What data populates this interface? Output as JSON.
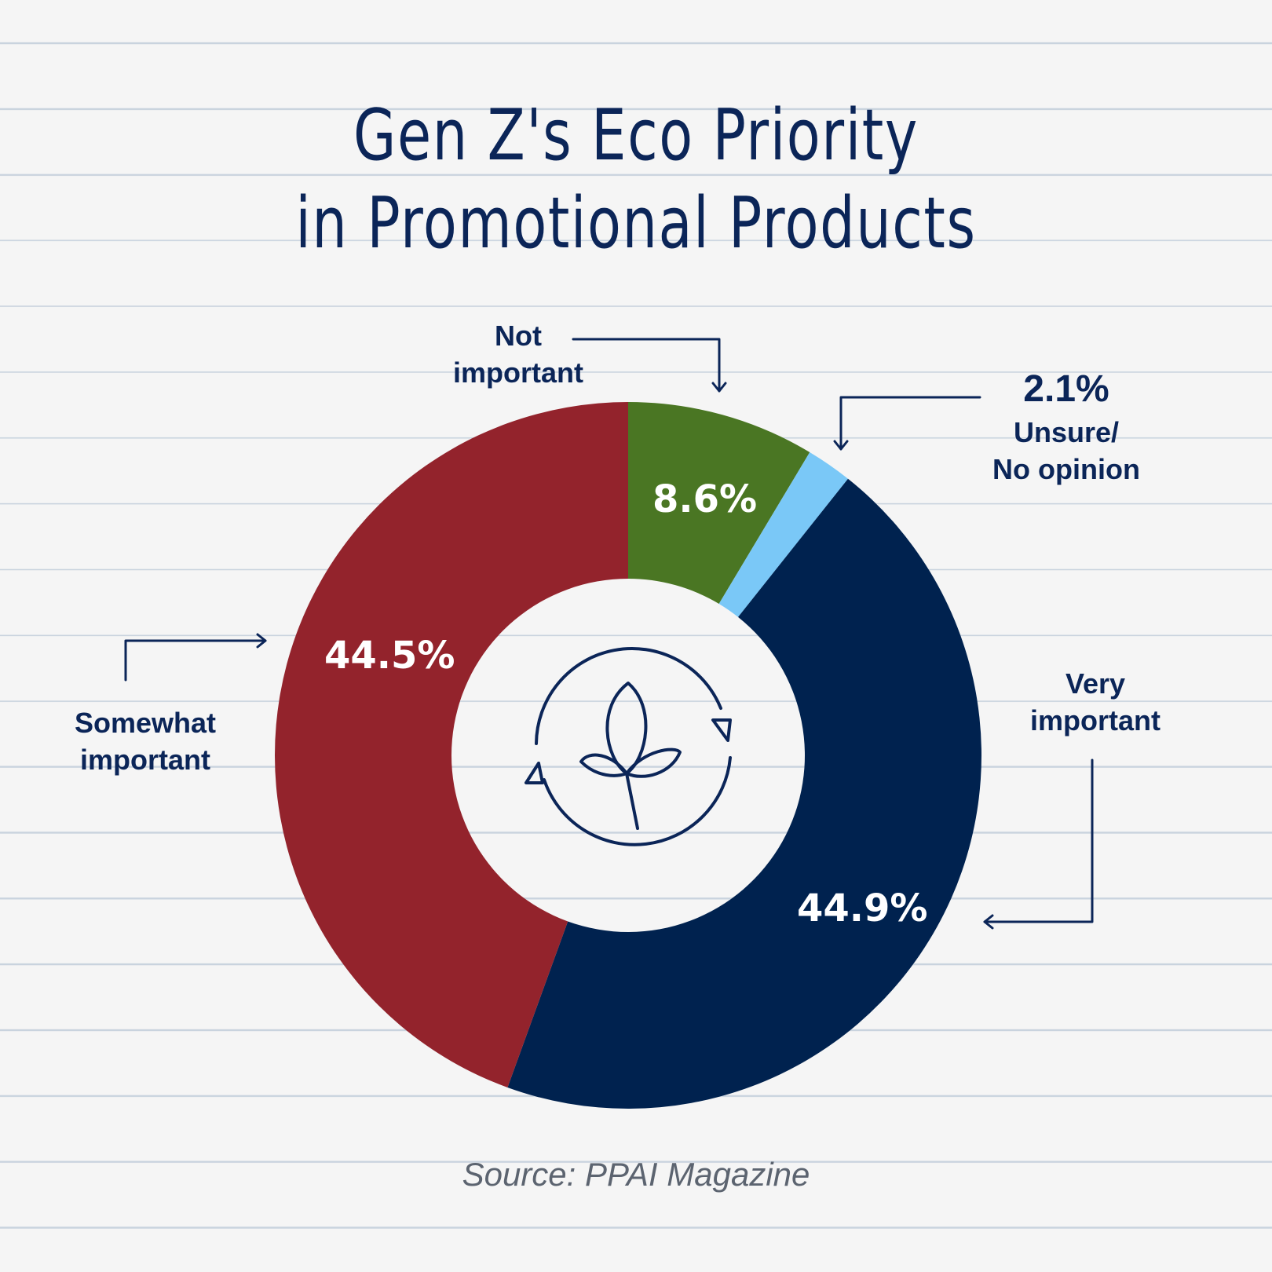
{
  "title_line1": "Gen Z's Eco Priority",
  "title_line2": "in Promotional Products",
  "source": "Source: PPAI Magazine",
  "labels": {
    "not_important": "Not\nimportant",
    "unsure": "Unsure/\nNo opinion",
    "unsure_value": "2.1%",
    "very_important": "Very\nimportant",
    "somewhat_important": "Somewhat\nimportant"
  },
  "colors": {
    "title": "#0b2558",
    "not_important": "#4a7623",
    "unsure": "#7ac8f7",
    "very_important": "#00224f",
    "somewhat_important": "#93232c"
  },
  "chart_data": {
    "type": "pie",
    "variant": "donut",
    "categories": [
      "Not important",
      "Unsure/ No opinion",
      "Very important",
      "Somewhat important"
    ],
    "values": [
      8.6,
      2.1,
      44.9,
      44.5
    ],
    "value_labels": [
      "8.6%",
      "2.1%",
      "44.9%",
      "44.5%"
    ],
    "start_angle": "top",
    "direction": "clockwise",
    "title": "Gen Z's Eco Priority in Promotional Products"
  }
}
